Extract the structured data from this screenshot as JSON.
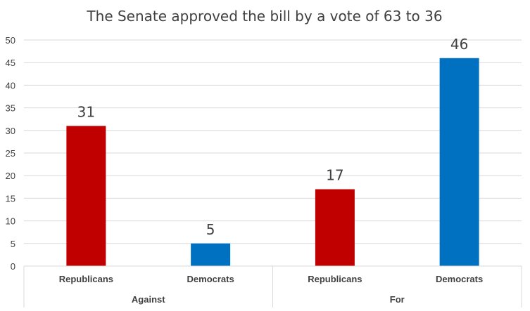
{
  "chart_data": {
    "type": "bar",
    "title": "The Senate approved the bill by a vote of 63 to 36",
    "xlabel": "",
    "ylabel": "",
    "ylim": [
      0,
      50
    ],
    "yticks": [
      0,
      5,
      10,
      15,
      20,
      25,
      30,
      35,
      40,
      45,
      50
    ],
    "grid": true,
    "legend": "none",
    "groups": [
      {
        "label": "Against",
        "categories": [
          "Republicans",
          "Democrats"
        ]
      },
      {
        "label": "For",
        "categories": [
          "Republicans",
          "Democrats"
        ]
      }
    ],
    "bars": [
      {
        "group": "Against",
        "category": "Republicans",
        "value": 31,
        "color": "#c00000"
      },
      {
        "group": "Against",
        "category": "Democrats",
        "value": 5,
        "color": "#0070c0"
      },
      {
        "group": "For",
        "category": "Republicans",
        "value": 17,
        "color": "#c00000"
      },
      {
        "group": "For",
        "category": "Democrats",
        "value": 46,
        "color": "#0070c0"
      }
    ],
    "colors": {
      "republicans": "#c00000",
      "democrats": "#0070c0",
      "grid": "#d9d9d9",
      "text": "#404040"
    }
  }
}
